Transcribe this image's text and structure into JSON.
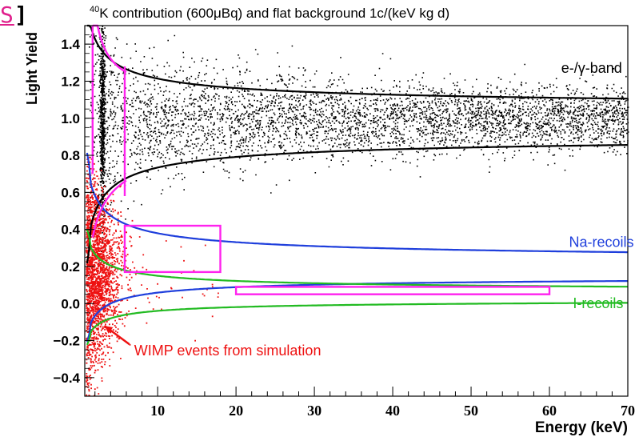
{
  "corner_label": {
    "text": "S",
    "bracket": "]"
  },
  "chart_data": {
    "type": "scatter",
    "title_prefix": "40",
    "title": "K contribution (600μBq) and flat background 1c/(keV kg d)",
    "xlabel": "Energy (keV)",
    "ylabel": "Light Yield",
    "xlim": [
      0.7,
      70
    ],
    "ylim": [
      -0.5,
      1.5
    ],
    "x_ticks": [
      10,
      20,
      30,
      40,
      50,
      60,
      70
    ],
    "y_ticks": [
      -0.4,
      -0.2,
      0.0,
      0.2,
      0.4,
      0.6,
      0.8,
      1.0,
      1.2,
      1.4
    ],
    "y_tick_labels": [
      "−0.4",
      "−0.2",
      "0.0",
      "0.2",
      "0.4",
      "0.6",
      "0.8",
      "1.0",
      "1.2",
      "1.4"
    ],
    "grid": false,
    "colors": {
      "egamma": "#000000",
      "na": "#1f3fdc",
      "i": "#22bb22",
      "roi": "#ff22ee",
      "wimp": "#ee1111"
    },
    "series": [
      {
        "name": "e-/γ-band",
        "kind": "band",
        "center": 1.0,
        "upper_base": 1.04,
        "upper_amp": 0.55,
        "lower_base": 0.93,
        "lower_amp": -0.62
      },
      {
        "name": "Na-recoils",
        "kind": "band",
        "upper_base": 0.215,
        "upper_amp": 0.52,
        "lower_base": 0.16,
        "lower_amp": -0.32
      },
      {
        "name": "I-recoils",
        "kind": "band",
        "upper_base": 0.055,
        "upper_amp": 0.3,
        "lower_base": 0.03,
        "lower_amp": -0.22
      }
    ],
    "roi_boxes": [
      {
        "x_range": [
          5.8,
          18
        ],
        "y_range": [
          0.17,
          0.42
        ]
      },
      {
        "x_range": [
          20,
          60
        ],
        "y_range": [
          0.05,
          0.09
        ]
      }
    ],
    "annotations": [
      {
        "text": "e-/γ-band",
        "x": 61.5,
        "y": 1.245,
        "color": "#000000"
      },
      {
        "text": "Na-recoils",
        "x": 62.5,
        "y": 0.305,
        "color": "#1f3fdc"
      },
      {
        "text": "I-recoils",
        "x": 63,
        "y": -0.025,
        "color": "#22bb22"
      },
      {
        "text": "WIMP events from simulation",
        "x": 7,
        "y": -0.28,
        "color": "#ee1111",
        "arrow_to": [
          3.2,
          -0.12
        ]
      }
    ]
  }
}
